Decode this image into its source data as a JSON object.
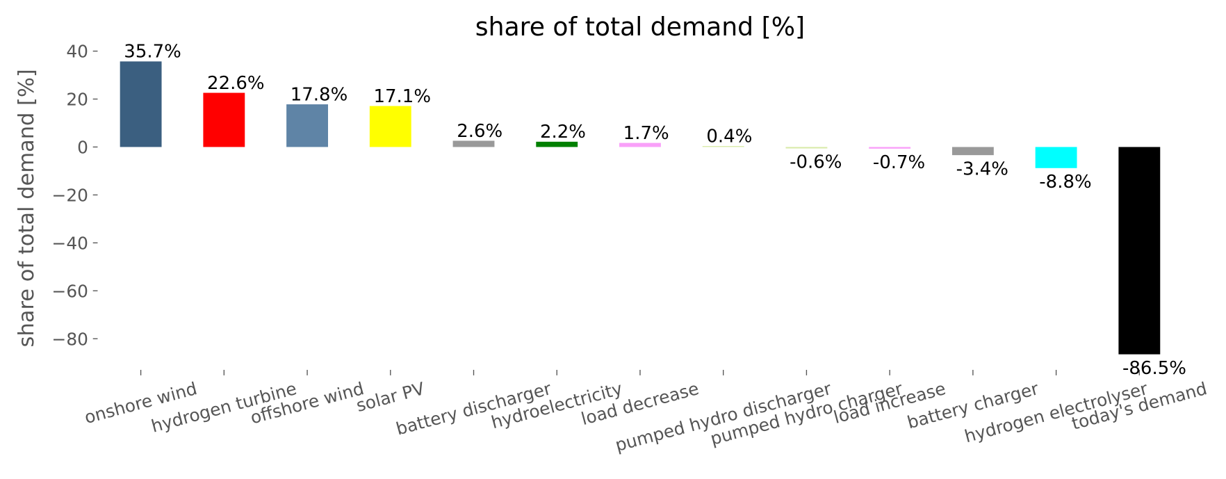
{
  "chart_data": {
    "type": "bar",
    "title": "share of total demand [%]",
    "ylabel": "share of total demand [%]",
    "categories": [
      "onshore wind",
      "hydrogen turbine",
      "offshore wind",
      "solar PV",
      "battery discharger",
      "hydroelectricity",
      "load decrease",
      "pumped hydro discharger",
      "pumped hydro charger",
      "load increase",
      "battery charger",
      "hydrogen electrolyser",
      "today's demand"
    ],
    "values": [
      35.7,
      22.6,
      17.8,
      17.1,
      2.6,
      2.2,
      1.7,
      0.4,
      -0.6,
      -0.7,
      -3.4,
      -8.8,
      -86.5
    ],
    "value_labels": [
      "35.7%",
      "22.6%",
      "17.8%",
      "17.1%",
      "2.6%",
      "2.2%",
      "1.7%",
      "0.4%",
      "-0.6%",
      "-0.7%",
      "-3.4%",
      "-8.8%",
      "-86.5%"
    ],
    "colors": [
      "#3b5f80",
      "#ff0000",
      "#5f84a6",
      "#ffff00",
      "#999999",
      "#008000",
      "#f9a0f9",
      "#d8eaa8",
      "#d8eaa8",
      "#f9a0f9",
      "#999999",
      "#00ffff",
      "#000000"
    ],
    "ylim": [
      -92,
      42
    ],
    "yticks": [
      {
        "value": -80,
        "label": "−80"
      },
      {
        "value": -60,
        "label": "−60"
      },
      {
        "value": -40,
        "label": "−40"
      },
      {
        "value": -20,
        "label": "−20"
      },
      0,
      20,
      40
    ],
    "grid": false
  }
}
